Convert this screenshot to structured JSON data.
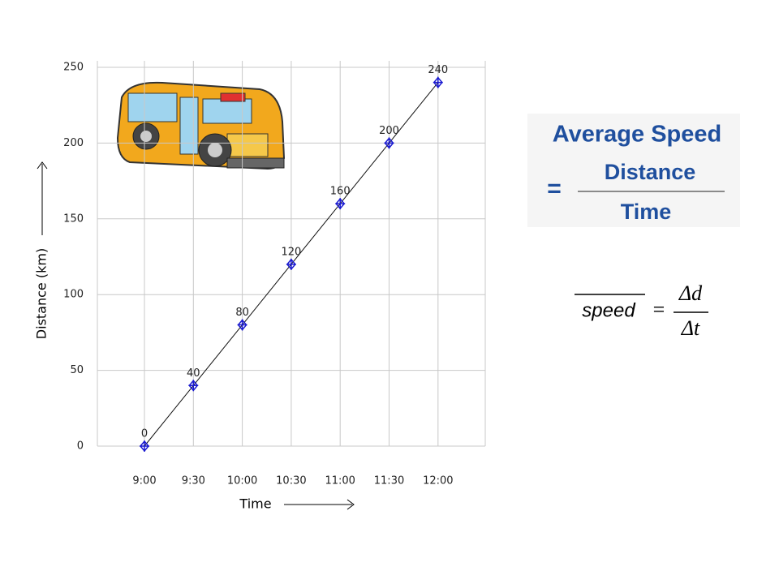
{
  "chart_data": {
    "type": "line",
    "x_label": "Time",
    "y_label": "Distance (km)",
    "categories": [
      "9:00",
      "9:30",
      "10:00",
      "10:30",
      "11:00",
      "11:30",
      "12:00"
    ],
    "values": [
      0,
      40,
      80,
      120,
      160,
      200,
      240
    ],
    "color": "#1a1ad0",
    "ylim": [
      0,
      250
    ],
    "yticks": [
      0,
      50,
      100,
      150,
      200,
      250
    ],
    "grid": true
  },
  "formula": {
    "title": "Average Speed",
    "equals": "=",
    "numerator": "Distance",
    "denominator": "Time",
    "symbolic": {
      "lhs": "speed",
      "equals": "=",
      "numerator": "Δd",
      "denominator": "Δt"
    }
  }
}
